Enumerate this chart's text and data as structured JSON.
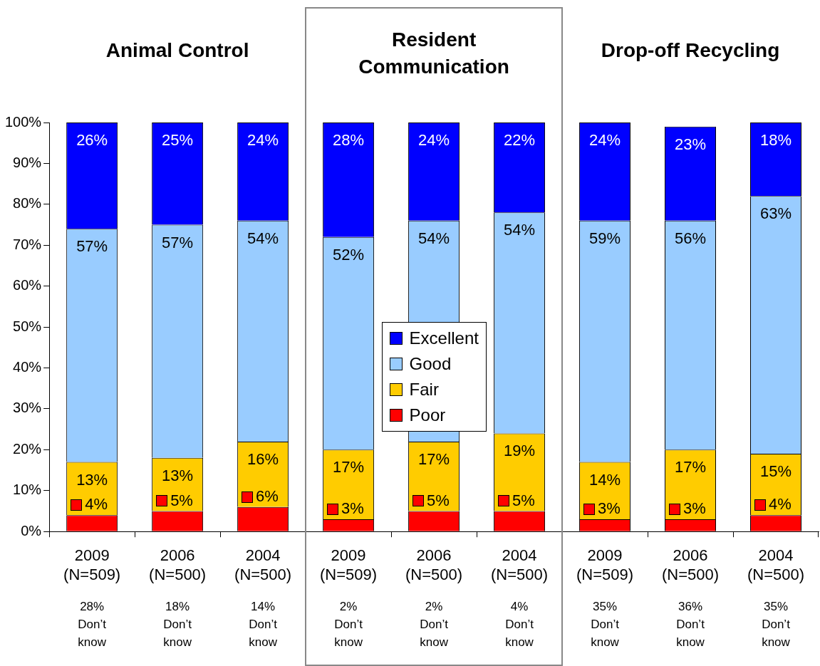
{
  "chart_data": {
    "type": "bar",
    "stacked": true,
    "categories": [
      "2009 (N=509)",
      "2006 (N=500)",
      "2004 (N=500)",
      "2009 (N=509)",
      "2006 (N=500)",
      "2004 (N=500)",
      "2009 (N=509)",
      "2006 (N=500)",
      "2004 (N=500)"
    ],
    "series": [
      {
        "name": "Poor",
        "color": "#ff0000",
        "values": [
          4,
          5,
          6,
          3,
          5,
          5,
          3,
          3,
          4
        ],
        "value_labels": [
          "4%",
          "5%",
          "6%",
          "3%",
          "5%",
          "5%",
          "3%",
          "3%",
          "4%"
        ]
      },
      {
        "name": "Fair",
        "color": "#ffcc00",
        "values": [
          13,
          13,
          16,
          17,
          17,
          19,
          14,
          17,
          15
        ],
        "value_labels": [
          "13%",
          "13%",
          "16%",
          "17%",
          "17%",
          "19%",
          "14%",
          "17%",
          "15%"
        ]
      },
      {
        "name": "Good",
        "color": "#99ccff",
        "values": [
          57,
          57,
          54,
          52,
          54,
          54,
          59,
          56,
          63
        ],
        "value_labels": [
          "57%",
          "57%",
          "54%",
          "52%",
          "54%",
          "54%",
          "59%",
          "56%",
          "63%"
        ]
      },
      {
        "name": "Excellent",
        "color": "#0000ff",
        "values": [
          26,
          25,
          24,
          28,
          24,
          22,
          24,
          23,
          18
        ],
        "value_labels": [
          "26%",
          "25%",
          "24%",
          "28%",
          "24%",
          "22%",
          "24%",
          "23%",
          "18%"
        ]
      }
    ],
    "ylim": [
      0,
      100
    ],
    "yticks": [
      {
        "value": 0,
        "label": "0%"
      },
      {
        "value": 10,
        "label": "10%"
      },
      {
        "value": 20,
        "label": "20%"
      },
      {
        "value": 30,
        "label": "30%"
      },
      {
        "value": 40,
        "label": "40%"
      },
      {
        "value": 50,
        "label": "50%"
      },
      {
        "value": 60,
        "label": "60%"
      },
      {
        "value": 70,
        "label": "70%"
      },
      {
        "value": 80,
        "label": "80%"
      },
      {
        "value": 90,
        "label": "90%"
      },
      {
        "value": 100,
        "label": "100%"
      }
    ],
    "grid": false,
    "legend": "center",
    "annotations": [
      "Animal Control",
      "Resident Communication",
      "Drop-off Recycling",
      "28% Don’t know",
      "18% Don’t know",
      "14% Don’t know",
      "2% Don’t know",
      "2% Don’t know",
      "4% Don’t know",
      "35% Don’t know",
      "36% Don’t know",
      "35% Don’t know"
    ]
  }
}
